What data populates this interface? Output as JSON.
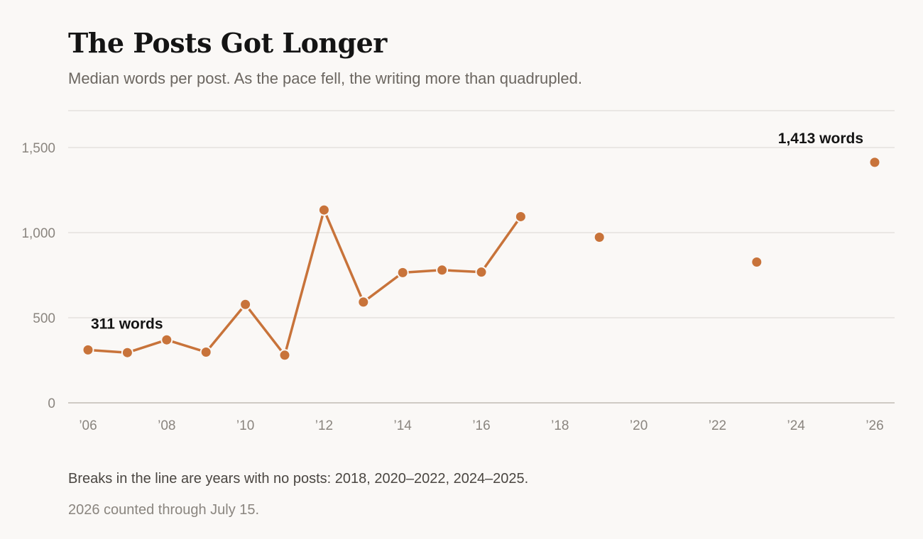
{
  "title": "The Posts Got Longer",
  "subtitle": "Median words per post. As the pace fell, the writing more than quadrupled.",
  "notes": {
    "breaks": "Breaks in the line are years with no posts: 2018, 2020–2022, 2024–2025.",
    "partial": "2026 counted through July 15."
  },
  "colors": {
    "series": "#c8733a",
    "grid": "#e4e1dd",
    "axis": "#cfcac4",
    "tick_text": "#8a857f"
  },
  "chart_data": {
    "type": "line",
    "title": "The Posts Got Longer",
    "subtitle": "Median words per post. As the pace fell, the writing more than quadrupled.",
    "xlabel": "",
    "ylabel": "",
    "xlim": [
      2006,
      2026
    ],
    "ylim": [
      0,
      1500
    ],
    "y_ticks": [
      0,
      500,
      1000,
      1500
    ],
    "y_tick_labels": [
      "0",
      "500",
      "1,000",
      "1,500"
    ],
    "x_ticks": [
      2006,
      2008,
      2010,
      2012,
      2014,
      2016,
      2018,
      2020,
      2022,
      2024,
      2026
    ],
    "x_tick_labels": [
      "’06",
      "’08",
      "’10",
      "’12",
      "’14",
      "’16",
      "’18",
      "’20",
      "’22",
      "’24",
      "’26"
    ],
    "grid": true,
    "series": [
      {
        "points": [
          {
            "x": 2006,
            "y": 311
          },
          {
            "x": 2007,
            "y": 295
          },
          {
            "x": 2008,
            "y": 370
          },
          {
            "x": 2009,
            "y": 298
          },
          {
            "x": 2010,
            "y": 578
          },
          {
            "x": 2011,
            "y": 280
          },
          {
            "x": 2012,
            "y": 1133
          },
          {
            "x": 2013,
            "y": 592
          },
          {
            "x": 2014,
            "y": 765
          },
          {
            "x": 2015,
            "y": 780
          },
          {
            "x": 2016,
            "y": 768
          },
          {
            "x": 2017,
            "y": 1094
          },
          {
            "x": 2018,
            "y": null
          },
          {
            "x": 2019,
            "y": 973
          },
          {
            "x": 2020,
            "y": null
          },
          {
            "x": 2021,
            "y": null
          },
          {
            "x": 2022,
            "y": null
          },
          {
            "x": 2023,
            "y": 827
          },
          {
            "x": 2024,
            "y": null
          },
          {
            "x": 2025,
            "y": null
          },
          {
            "x": 2026,
            "y": 1413
          }
        ]
      }
    ],
    "annotations": [
      {
        "x": 2006,
        "y": 311,
        "text": "311 words"
      },
      {
        "x": 2026,
        "y": 1413,
        "text": "1,413 words"
      }
    ]
  }
}
